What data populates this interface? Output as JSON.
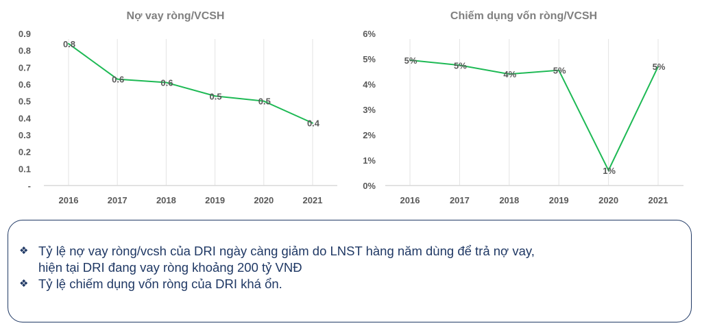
{
  "chart_data": [
    {
      "type": "line",
      "title": "Nợ vay ròng/VCSH",
      "categories": [
        "2016",
        "2017",
        "2018",
        "2019",
        "2020",
        "2021"
      ],
      "values": [
        0.84,
        0.63,
        0.61,
        0.53,
        0.5,
        0.37
      ],
      "data_labels": [
        "0.8",
        "0.6",
        "0.6",
        "0.5",
        "0.5",
        "0.4"
      ],
      "yticks": [
        "-",
        "0.1",
        "0.2",
        "0.3",
        "0.4",
        "0.5",
        "0.6",
        "0.7",
        "0.8",
        "0.9"
      ],
      "ytick_values": [
        0,
        0.1,
        0.2,
        0.3,
        0.4,
        0.5,
        0.6,
        0.7,
        0.8,
        0.9
      ],
      "ylim": [
        0,
        0.9
      ],
      "xlabel": "",
      "ylabel": "",
      "grid": "vertical",
      "line_color": "#1db954",
      "legend": "none"
    },
    {
      "type": "line",
      "title": "Chiếm dụng vốn ròng/VCSH",
      "categories": [
        "2016",
        "2017",
        "2018",
        "2019",
        "2020",
        "2021"
      ],
      "values": [
        4.95,
        4.75,
        4.4,
        4.55,
        0.6,
        4.7
      ],
      "data_labels": [
        "5%",
        "5%",
        "4%",
        "5%",
        "1%",
        "5%"
      ],
      "yticks": [
        "0%",
        "1%",
        "2%",
        "3%",
        "4%",
        "5%",
        "6%"
      ],
      "ytick_values": [
        0,
        1,
        2,
        3,
        4,
        5,
        6
      ],
      "ylim": [
        0,
        6
      ],
      "xlabel": "",
      "ylabel": "",
      "grid": "vertical",
      "line_color": "#1db954",
      "legend": "none"
    }
  ],
  "notes": {
    "bullet_icon": "❖",
    "items": [
      {
        "line1": "Tỷ lệ nợ vay ròng/vcsh của DRI ngày càng giảm do LNST hàng năm dùng để trả nợ vay,",
        "line2": "hiện tại DRI đang vay ròng khoảng 200 tỷ VNĐ"
      },
      {
        "line1": "Tỷ lệ chiếm dụng vốn ròng của DRI khá ổn.",
        "line2": ""
      }
    ]
  }
}
